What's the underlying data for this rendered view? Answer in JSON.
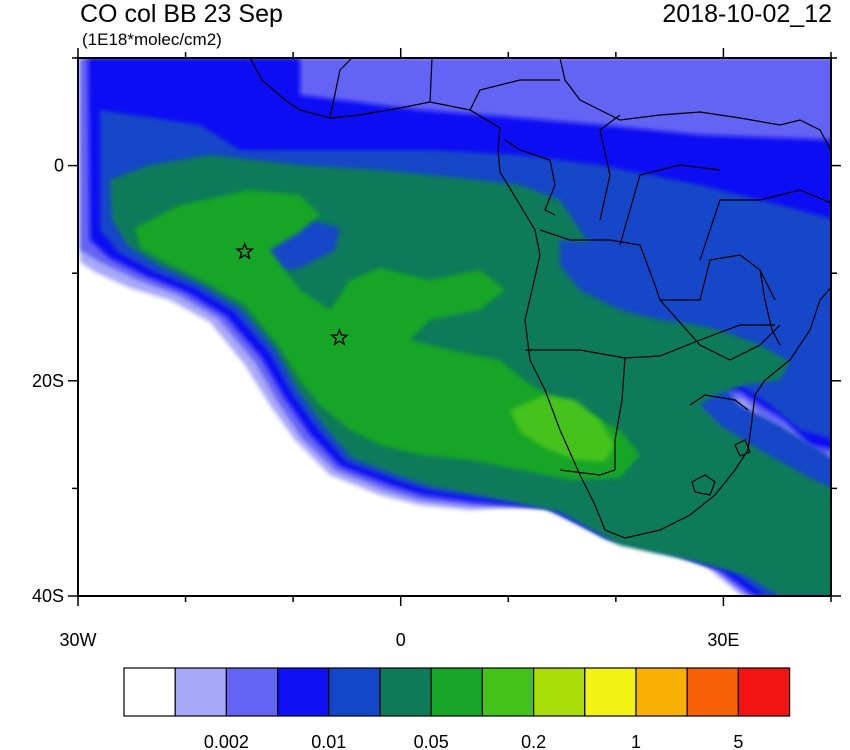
{
  "header": {
    "title": "CO col BB 23 Sep",
    "units": "(1E18*molec/cm2)",
    "datetime": "2018-10-02_12"
  },
  "map": {
    "lat_labels": [
      {
        "label": "0",
        "lat": 0
      },
      {
        "label": "20S",
        "lat": -20
      },
      {
        "label": "40S",
        "lat": -40
      }
    ],
    "lon_labels": [
      {
        "label": "30W",
        "lon": -30
      },
      {
        "label": "0",
        "lon": 0
      },
      {
        "label": "30E",
        "lon": 30
      }
    ],
    "lon_range": [
      -30,
      40
    ],
    "lat_range": [
      -40,
      10
    ],
    "markers": [
      {
        "name": "star-marker-1",
        "lon": -14.5,
        "lat": -8
      },
      {
        "name": "star-marker-2",
        "lon": -5.7,
        "lat": -16
      }
    ]
  },
  "colorbar": {
    "colors": [
      "#ffffff",
      "#a8a8f8",
      "#6464f4",
      "#1010f4",
      "#1446c8",
      "#0f7a5a",
      "#17a528",
      "#44c21a",
      "#aadc0a",
      "#f4f414",
      "#f8b004",
      "#f86008",
      "#f41414"
    ],
    "tick_labels": [
      "0.002",
      "0.01",
      "0.05",
      "0.2",
      "1",
      "5"
    ]
  }
}
